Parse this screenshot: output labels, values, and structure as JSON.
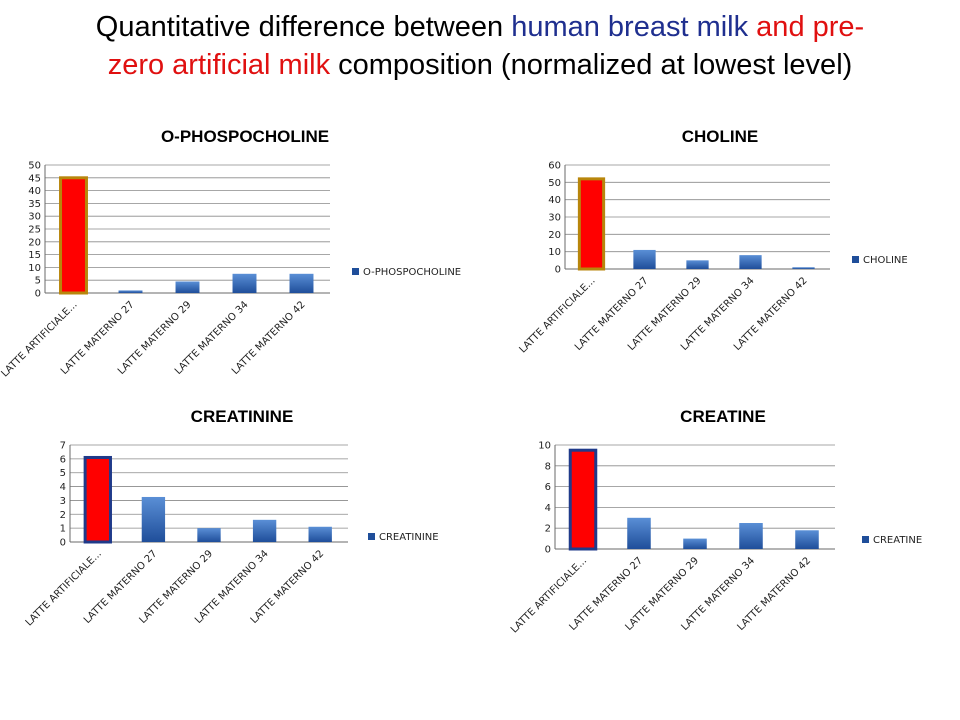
{
  "title": {
    "part1": "Quantitative difference between ",
    "part2": "human breast milk",
    "part3": " and ",
    "part4": "pre-",
    "part5": "zero artificial milk",
    "part6": " composition (normalized at lowest level)"
  },
  "colors": {
    "highlight_fill": "#ff0000",
    "highlight_border_1": "#b8860b",
    "highlight_border_2": "#1f3a8a",
    "bar_top": "#5a8fd6",
    "bar_bottom": "#1f4e9a",
    "title_blue": "#1f2f8f",
    "title_red": "#e01010"
  },
  "chart_data": [
    {
      "type": "bar",
      "title": "O-PHOSPOCHOLINE",
      "categories": [
        "LATTE ARTIFICIALE...",
        "LATTE MATERNO 27",
        "LATTE MATERNO 29",
        "LATTE MATERNO 34",
        "LATTE MATERNO 42"
      ],
      "series": [
        {
          "name": "O-PHOSPOCHOLINE",
          "values": [
            45,
            1,
            4.5,
            7.5,
            7.5
          ]
        }
      ],
      "ylim": [
        0,
        50
      ],
      "yticks": [
        0,
        5,
        10,
        15,
        20,
        25,
        30,
        35,
        40,
        45,
        50
      ],
      "highlight_index": 0,
      "highlight_border": "#b8860b",
      "legend": "right",
      "grid": true
    },
    {
      "type": "bar",
      "title": "CHOLINE",
      "categories": [
        "LATTE ARTIFICIALE...",
        "LATTE MATERNO 27",
        "LATTE MATERNO 29",
        "LATTE MATERNO 34",
        "LATTE MATERNO 42"
      ],
      "series": [
        {
          "name": "CHOLINE",
          "values": [
            52,
            11,
            5,
            8,
            1
          ]
        }
      ],
      "ylim": [
        0,
        60
      ],
      "yticks": [
        0,
        10,
        20,
        30,
        40,
        50,
        60
      ],
      "highlight_index": 0,
      "highlight_border": "#b8860b",
      "legend": "right",
      "grid": true
    },
    {
      "type": "bar",
      "title": "CREATININE",
      "categories": [
        "LATTE ARTIFICIALE...",
        "LATTE MATERNO 27",
        "LATTE MATERNO 29",
        "LATTE MATERNO 34",
        "LATTE MATERNO 42"
      ],
      "series": [
        {
          "name": "CREATININE",
          "values": [
            6.1,
            3.25,
            1,
            1.6,
            1.1
          ]
        }
      ],
      "ylim": [
        0,
        7
      ],
      "yticks": [
        0,
        1,
        2,
        3,
        4,
        5,
        6,
        7
      ],
      "highlight_index": 0,
      "highlight_border": "#1f3a8a",
      "legend": "right",
      "grid": true
    },
    {
      "type": "bar",
      "title": "CREATINE",
      "categories": [
        "LATTE ARTIFICIALE...",
        "LATTE MATERNO 27",
        "LATTE MATERNO 29",
        "LATTE MATERNO 34",
        "LATTE MATERNO 42"
      ],
      "series": [
        {
          "name": "CREATINE",
          "values": [
            9.5,
            3,
            1,
            2.5,
            1.8
          ]
        }
      ],
      "ylim": [
        0,
        10
      ],
      "yticks": [
        0,
        2,
        4,
        6,
        8,
        10
      ],
      "highlight_index": 0,
      "highlight_border": "#1f3a8a",
      "legend": "right",
      "grid": true
    }
  ]
}
